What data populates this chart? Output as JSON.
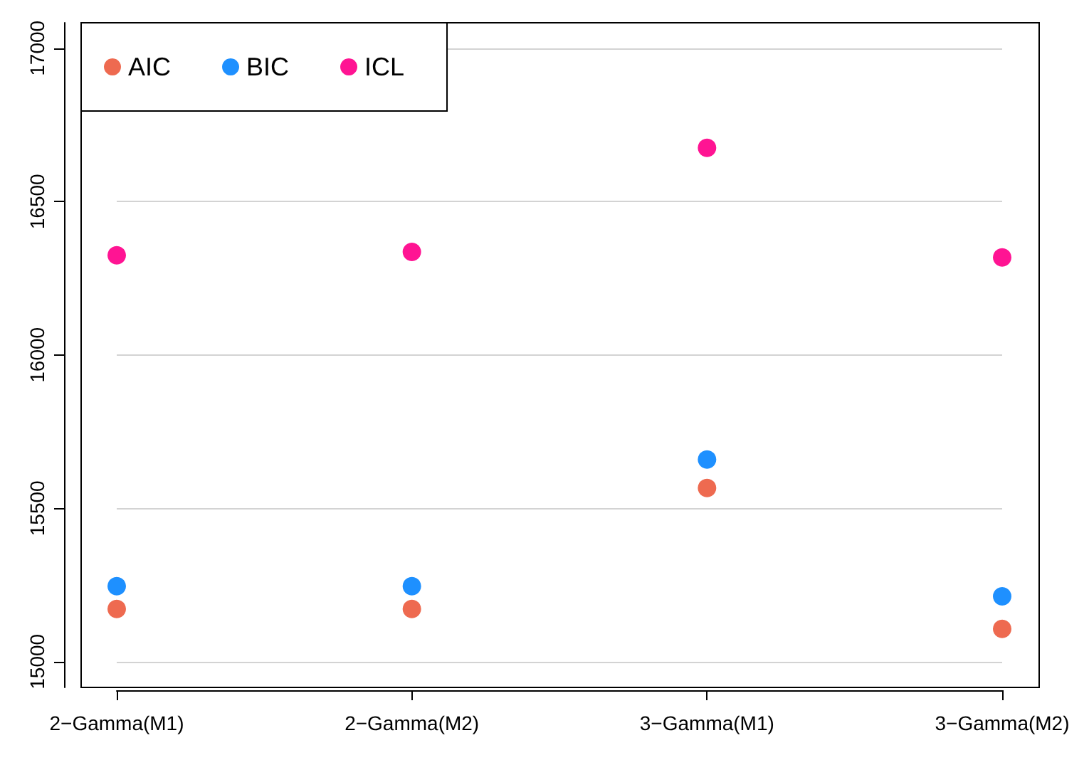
{
  "chart_data": {
    "type": "scatter",
    "categories": [
      "2−Gamma(M1)",
      "2−Gamma(M2)",
      "3−Gamma(M1)",
      "3−Gamma(M2)"
    ],
    "series": [
      {
        "name": "AIC",
        "color": "#ee6a50",
        "values": [
          15172,
          15172,
          15566,
          15107
        ]
      },
      {
        "name": "BIC",
        "color": "#1e90ff",
        "values": [
          15246,
          15246,
          15659,
          15213
        ]
      },
      {
        "name": "ICL",
        "color": "#ff1493",
        "values": [
          16325,
          16336,
          16675,
          16318
        ]
      }
    ],
    "ylim": [
      14916,
      17083
    ],
    "yticks": [
      15000,
      15500,
      16000,
      16500,
      17000
    ],
    "grid": "y",
    "legend": "top left",
    "marker": "circle"
  }
}
